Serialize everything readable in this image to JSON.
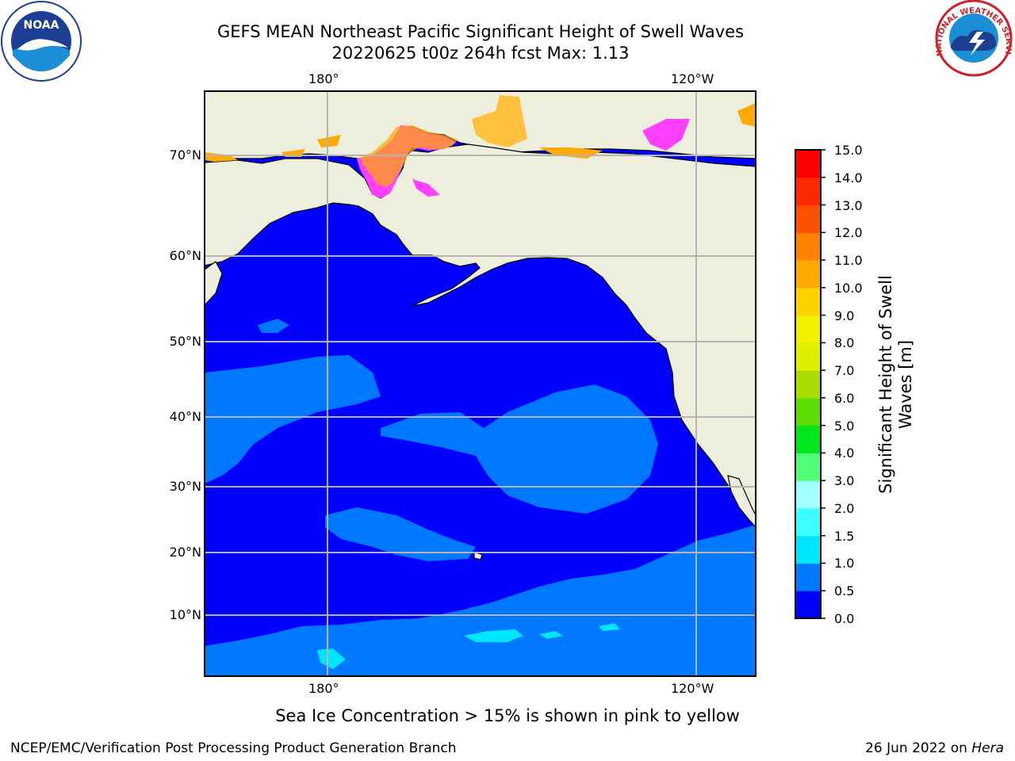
{
  "title": {
    "line1": "GEFS MEAN Northeast Pacific Significant Height of Swell Waves",
    "line2": "20220625 t00z 264h fcst   Max: 1.13"
  },
  "axes": {
    "lat_labels": [
      "70°N",
      "60°N",
      "50°N",
      "40°N",
      "30°N",
      "20°N",
      "10°N"
    ],
    "lon_labels": [
      "180°",
      "120°W"
    ]
  },
  "colorbar": {
    "title": "Significant Height of Swell Waves [m]",
    "ticks": [
      "15.0",
      "14.0",
      "13.0",
      "12.0",
      "11.0",
      "10.0",
      "9.0",
      "8.0",
      "7.0",
      "6.0",
      "5.0",
      "4.0",
      "3.0",
      "2.0",
      "1.5",
      "1.0",
      "0.5",
      "0.0"
    ],
    "colors_bottom_to_top": [
      "#0000ff",
      "#0078ff",
      "#00e6ff",
      "#3cffff",
      "#a0ffff",
      "#50ff78",
      "#00e61e",
      "#5adc00",
      "#aadc00",
      "#dcf000",
      "#f0f000",
      "#ffd200",
      "#ffaa00",
      "#ff8200",
      "#ff5000",
      "#ff2800",
      "#ff0000"
    ]
  },
  "legend_note": "Sea Ice Concentration > 15% is shown in pink to yellow",
  "footer": {
    "left": "NCEP/EMC/Verification Post Processing Product Generation Branch",
    "date": "26 Jun 2022 on ",
    "host": "Hera"
  },
  "logos": {
    "left": "NOAA",
    "right": "NATIONAL WEATHER SERVICE"
  },
  "colors": {
    "ocean_low": "#0000ff",
    "ocean_mid": "#0078ff",
    "land": "#eeeedc",
    "grid": "#b4b4b4"
  }
}
